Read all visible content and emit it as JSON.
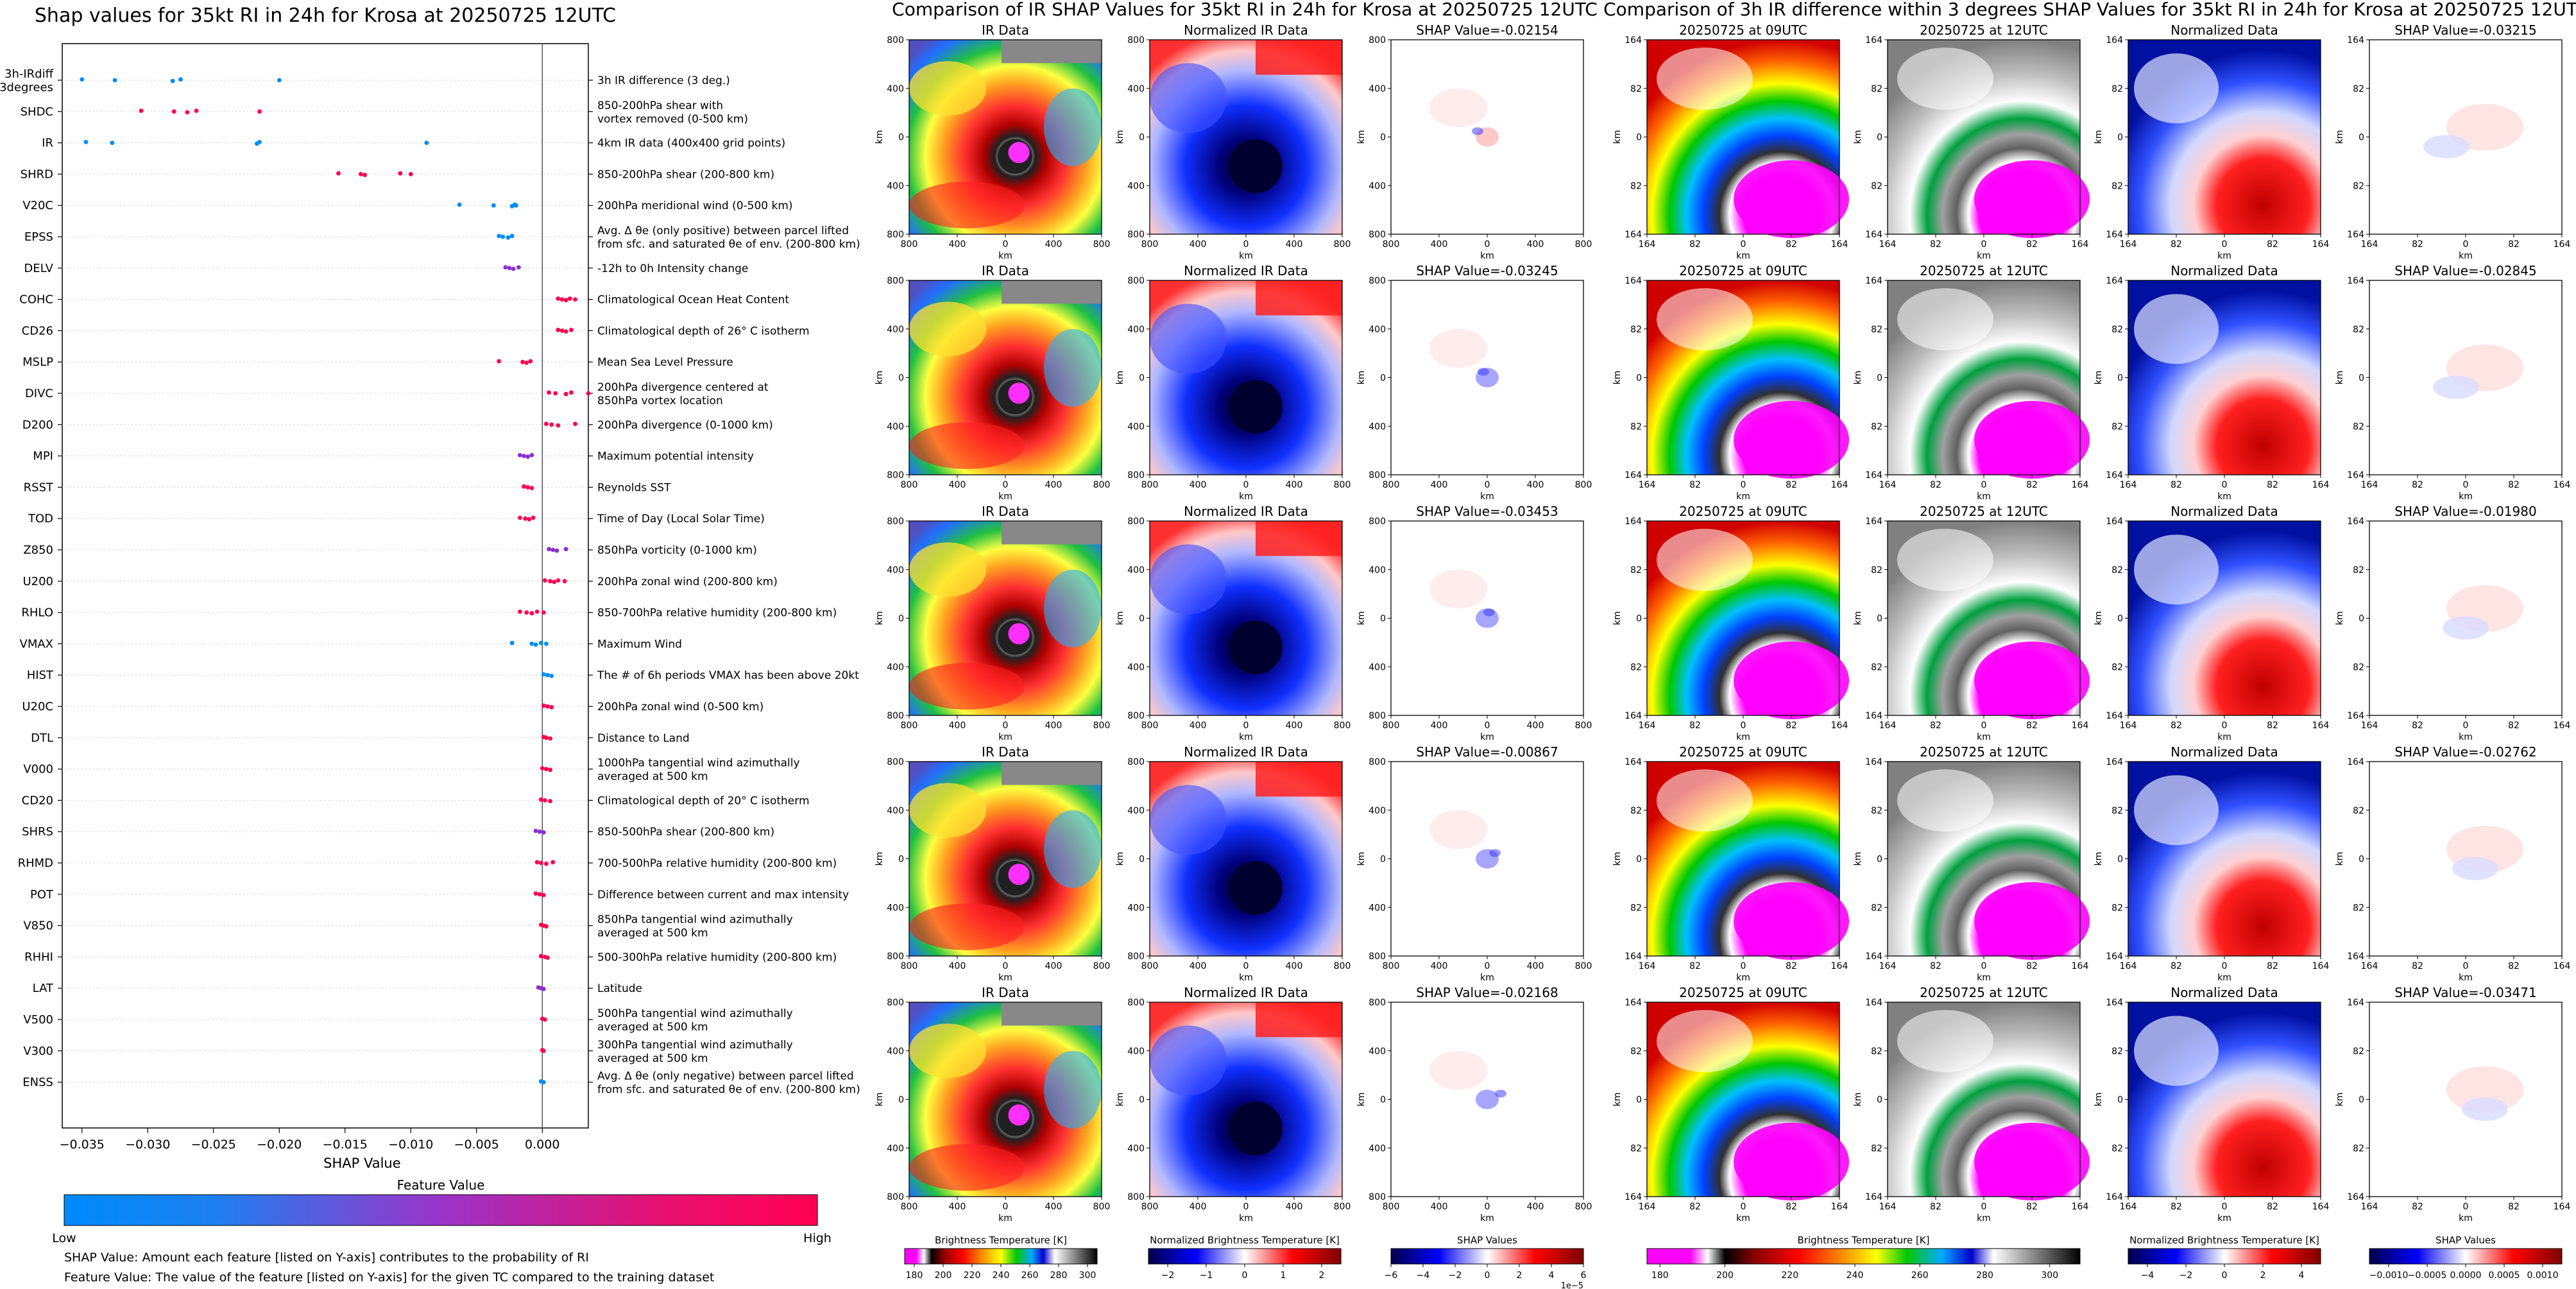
{
  "beeswarm": {
    "title": "Shap values for 35kt RI in 24h for Krosa at 20250725 12UTC",
    "xlabel": "SHAP Value",
    "xticks": [
      "−0.035",
      "−0.030",
      "−0.025",
      "−0.020",
      "−0.015",
      "−0.010",
      "−0.005",
      "0.000"
    ],
    "features": [
      {
        "code": "3h-IRdiff\n3degrees",
        "desc": "3h IR difference (3 deg.)",
        "shap": [
          -0.035,
          -0.0325,
          -0.0281,
          -0.0275,
          -0.02
        ],
        "color": "low"
      },
      {
        "code": "SHDC",
        "desc": "850-200hPa shear with\nvortex removed (0-500 km)",
        "shap": [
          -0.0305,
          -0.028,
          -0.027,
          -0.0263,
          -0.0215
        ],
        "color": "high"
      },
      {
        "code": "IR",
        "desc": "4km IR data (400x400 grid points)",
        "shap": [
          -0.0347,
          -0.0327,
          -0.0217,
          -0.0215,
          -0.0088
        ],
        "color": "low"
      },
      {
        "code": "SHRD",
        "desc": "850-200hPa shear (200-800 km)",
        "shap": [
          -0.0155,
          -0.0138,
          -0.0135,
          -0.0108,
          -0.01
        ],
        "color": "high"
      },
      {
        "code": "V20C",
        "desc": "200hPa meridional wind (0-500 km)",
        "shap": [
          -0.0063,
          -0.0037,
          -0.0023,
          -0.0021,
          -0.002
        ],
        "color": "low"
      },
      {
        "code": "EPSS",
        "desc": "Avg. Δ θe (only positive) between parcel lifted\nfrom sfc. and saturated θe of env. (200-800 km)",
        "shap": [
          -0.0033,
          -0.003,
          -0.0026,
          -0.0023
        ],
        "color": "low"
      },
      {
        "code": "DELV",
        "desc": "-12h to 0h Intensity change",
        "shap": [
          -0.0028,
          -0.0025,
          -0.0022,
          -0.0018
        ],
        "color": "mid"
      },
      {
        "code": "COHC",
        "desc": "Climatological Ocean Heat Content",
        "shap": [
          0.0012,
          0.0015,
          0.0018,
          0.0021,
          0.0025
        ],
        "color": "high"
      },
      {
        "code": "CD26",
        "desc": "Climatological depth of 26° C isotherm",
        "shap": [
          0.0012,
          0.0015,
          0.0018,
          0.0022
        ],
        "color": "high"
      },
      {
        "code": "MSLP",
        "desc": "Mean Sea Level Pressure",
        "shap": [
          -0.0033,
          -0.0015,
          -0.0012,
          -0.0009
        ],
        "color": "high"
      },
      {
        "code": "DIVC",
        "desc": "200hPa divergence centered at\n850hPa vortex location",
        "shap": [
          0.0005,
          0.001,
          0.0018,
          0.0022,
          0.0035
        ],
        "color": "high"
      },
      {
        "code": "D200",
        "desc": "200hPa divergence (0-1000 km)",
        "shap": [
          0.0003,
          0.0007,
          0.0012,
          0.0025
        ],
        "color": "high"
      },
      {
        "code": "MPI",
        "desc": "Maximum potential intensity",
        "shap": [
          -0.0017,
          -0.0014,
          -0.0011,
          -0.0008
        ],
        "color": "mid"
      },
      {
        "code": "RSST",
        "desc": "Reynolds SST",
        "shap": [
          -0.0014,
          -0.0011,
          -0.0008
        ],
        "color": "high"
      },
      {
        "code": "TOD",
        "desc": "Time of Day (Local Solar Time)",
        "shap": [
          -0.0017,
          -0.0013,
          -0.001,
          -0.0007
        ],
        "color": "high"
      },
      {
        "code": "Z850",
        "desc": "850hPa vorticity (0-1000 km)",
        "shap": [
          0.0005,
          0.0008,
          0.0011,
          0.0018
        ],
        "color": "mid"
      },
      {
        "code": "U200",
        "desc": "200hPa zonal wind (200-800 km)",
        "shap": [
          0.0002,
          0.0006,
          0.0009,
          0.0012,
          0.0017
        ],
        "color": "high"
      },
      {
        "code": "RHLO",
        "desc": "850-700hPa relative humidity (200-800 km)",
        "shap": [
          -0.0017,
          -0.0012,
          -0.0008,
          -0.0004,
          0.0001
        ],
        "color": "high"
      },
      {
        "code": "VMAX",
        "desc": "Maximum Wind",
        "shap": [
          -0.0023,
          -0.0008,
          -0.0005,
          -0.0001,
          0.0003
        ],
        "color": "low"
      },
      {
        "code": "HIST",
        "desc": "The # of 6h periods VMAX has been above 20kt",
        "shap": [
          0.0001,
          0.0004,
          0.0007
        ],
        "color": "low"
      },
      {
        "code": "U20C",
        "desc": "200hPa zonal wind (0-500 km)",
        "shap": [
          0.0001,
          0.0004,
          0.0007
        ],
        "color": "high"
      },
      {
        "code": "DTL",
        "desc": "Distance to Land",
        "shap": [
          0.0001,
          0.0003,
          0.0006
        ],
        "color": "high"
      },
      {
        "code": "V000",
        "desc": "1000hPa tangential wind azimuthally\naveraged at 500 km",
        "shap": [
          0.0,
          0.0003,
          0.0006
        ],
        "color": "high"
      },
      {
        "code": "CD20",
        "desc": "Climatological depth of 20° C isotherm",
        "shap": [
          -0.0001,
          0.0002,
          0.0006
        ],
        "color": "high"
      },
      {
        "code": "SHRS",
        "desc": "850-500hPa shear (200-800 km)",
        "shap": [
          -0.0005,
          -0.0002,
          0.0001
        ],
        "color": "mid"
      },
      {
        "code": "RHMD",
        "desc": "700-500hPa relative humidity (200-800 km)",
        "shap": [
          -0.0004,
          -0.0001,
          0.0003,
          0.0008
        ],
        "color": "high"
      },
      {
        "code": "POT",
        "desc": "Difference between current and max intensity",
        "shap": [
          -0.0005,
          -0.0002,
          0.0001
        ],
        "color": "high"
      },
      {
        "code": "V850",
        "desc": "850hPa tangential wind azimuthally\naveraged at 500 km",
        "shap": [
          -0.0001,
          0.0001,
          0.0003
        ],
        "color": "high"
      },
      {
        "code": "RHHI",
        "desc": "500-300hPa relative humidity (200-800 km)",
        "shap": [
          -0.0001,
          0.0002,
          0.0004
        ],
        "color": "high"
      },
      {
        "code": "LAT",
        "desc": "Latitude",
        "shap": [
          -0.0003,
          -0.0001,
          0.0001
        ],
        "color": "mid"
      },
      {
        "code": "V500",
        "desc": "500hPa tangential wind azimuthally\naveraged at 500 km",
        "shap": [
          0.0,
          0.0002
        ],
        "color": "high"
      },
      {
        "code": "V300",
        "desc": "300hPa tangential wind azimuthally\naveraged at 500 km",
        "shap": [
          0.0,
          0.0001
        ],
        "color": "high"
      },
      {
        "code": "ENSS",
        "desc": "Avg. Δ θe (only negative) between parcel lifted\nfrom sfc. and saturated θe of env. (200-800 km)",
        "shap": [
          -0.0001,
          0.0001
        ],
        "color": "low"
      }
    ],
    "colorbar": {
      "label": "Feature Value",
      "low": "Low",
      "high": "High",
      "low_color": "#008bfb",
      "high_color": "#ff0052"
    },
    "footnote1": "SHAP Value: Amount each feature [listed on Y-axis] contributes to the probability of RI",
    "footnote2": "Feature Value: The value of the feature [listed on Y-axis] for the given TC compared to the training dataset"
  },
  "ir_section": {
    "title": "Comparison of IR SHAP Values for 35kt RI in 24h for Krosa at 20250725 12UTC",
    "col_titles": [
      "IR Data",
      "Normalized IR Data"
    ],
    "shap_titles": [
      "SHAP Value=-0.02154",
      "SHAP Value=-0.03245",
      "SHAP Value=-0.03453",
      "SHAP Value=-0.00867",
      "SHAP Value=-0.02168"
    ],
    "ticks": [
      "800",
      "400",
      "0",
      "400",
      "800"
    ],
    "axis_label": "km",
    "colorbars": [
      {
        "label": "Brightness Temperature [K]",
        "ticks": [
          "180",
          "200",
          "220",
          "240",
          "260",
          "280",
          "300"
        ]
      },
      {
        "label": "Normalized Brightness Temperature [K]",
        "ticks": [
          "−2",
          "−1",
          "0",
          "1",
          "2"
        ]
      },
      {
        "label": "SHAP Values",
        "ticks": [
          "−6",
          "−4",
          "−2",
          "0",
          "2",
          "4",
          "6"
        ],
        "offset": "1e−5"
      }
    ]
  },
  "irdiff_section": {
    "title": "Comparison of 3h IR difference within 3 degrees SHAP Values for 35kt RI in 24h for Krosa at 20250725 12UTC",
    "col_titles": [
      "20250725 at 09UTC",
      "20250725 at 12UTC",
      "Normalized Data"
    ],
    "shap_titles": [
      "SHAP Value=-0.03215",
      "SHAP Value=-0.02845",
      "SHAP Value=-0.01980",
      "SHAP Value=-0.02762",
      "SHAP Value=-0.03471"
    ],
    "ticks": [
      "164",
      "82",
      "0",
      "82",
      "164"
    ],
    "axis_label": "km",
    "colorbars": [
      {
        "label": "Brightness Temperature [K]",
        "ticks": [
          "180",
          "200",
          "220",
          "240",
          "260",
          "280",
          "300"
        ]
      },
      {
        "label": "Normalized Brightness Temperature [K]",
        "ticks": [
          "−4",
          "−2",
          "0",
          "2",
          "4"
        ]
      },
      {
        "label": "SHAP Values",
        "ticks": [
          "−0.0010",
          "−0.0005",
          "0.0000",
          "0.0005",
          "0.0010"
        ]
      }
    ]
  },
  "chart_data": [
    {
      "type": "scatter",
      "title": "Shap values for 35kt RI in 24h for Krosa at 20250725 12UTC",
      "xlabel": "SHAP Value",
      "ylabel": "",
      "xlim": [
        -0.0365,
        0.0035
      ],
      "categories": [
        "3h-IRdiff 3degrees",
        "SHDC",
        "IR",
        "SHRD",
        "V20C",
        "EPSS",
        "DELV",
        "COHC",
        "CD26",
        "MSLP",
        "DIVC",
        "D200",
        "MPI",
        "RSST",
        "TOD",
        "Z850",
        "U200",
        "RHLO",
        "VMAX",
        "HIST",
        "U20C",
        "DTL",
        "V000",
        "CD20",
        "SHRS",
        "RHMD",
        "POT",
        "V850",
        "RHHI",
        "LAT",
        "V500",
        "V300",
        "ENSS"
      ]
    },
    {
      "type": "heatmap",
      "title": "Comparison of IR SHAP Values for 35kt RI in 24h for Krosa at 20250725 12UTC",
      "xlim": [
        -800,
        800
      ],
      "ylim": [
        -800,
        800
      ],
      "panels": [
        "IR Data",
        "Normalized IR Data",
        "SHAP Value"
      ]
    },
    {
      "type": "heatmap",
      "title": "Comparison of 3h IR difference within 3 degrees SHAP Values for 35kt RI in 24h for Krosa at 20250725 12UTC",
      "xlim": [
        -164,
        164
      ],
      "ylim": [
        -164,
        164
      ],
      "panels": [
        "20250725 at 09UTC",
        "20250725 at 12UTC",
        "Normalized Data",
        "SHAP Value"
      ]
    }
  ]
}
